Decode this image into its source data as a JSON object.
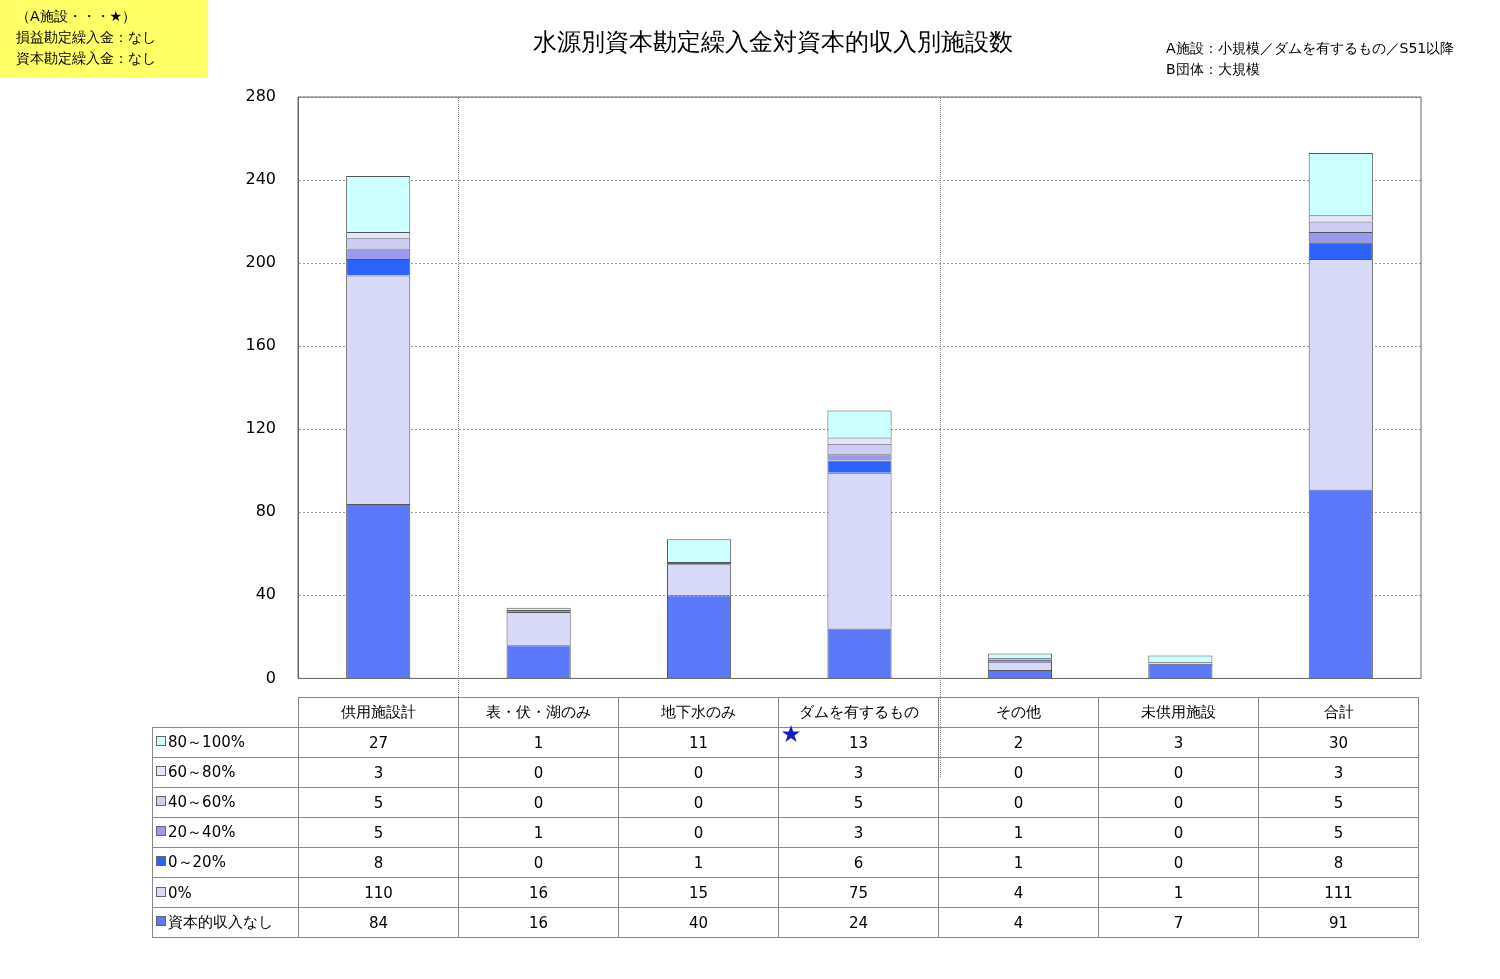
{
  "chart_data": {
    "type": "bar",
    "title": "水源別資本勘定繰入金対資本的収入別施設数",
    "annotations": [
      "（A施設・・・★）",
      "損益勘定繰入金：なし",
      "資本勘定繰入金：なし",
      "A施設：小規模／ダムを有するもの／S51以降",
      "B団体：大規模"
    ],
    "categories": [
      "供用施設計",
      "表・伏・湖のみ",
      "地下水のみ",
      "ダムを有するもの",
      "その他",
      "未供用施設",
      "合計"
    ],
    "stacked": true,
    "data_labels": true,
    "legend": "bottom",
    "grid": "y",
    "ylim": [
      0,
      280
    ],
    "yticks": [
      0,
      40,
      80,
      120,
      160,
      200,
      240,
      280
    ],
    "series": [
      {
        "name": "資本的収入なし",
        "color": "#5a78f8",
        "values": [
          84,
          16,
          40,
          24,
          4,
          7,
          91
        ]
      },
      {
        "name": "0%",
        "color": "#d8d8f8",
        "values": [
          110,
          16,
          15,
          75,
          4,
          1,
          111
        ]
      },
      {
        "name": "0～20%",
        "color": "#2d62fa",
        "values": [
          8,
          0,
          1,
          6,
          1,
          0,
          8
        ]
      },
      {
        "name": "20～40%",
        "color": "#9999f0",
        "values": [
          5,
          1,
          0,
          3,
          1,
          0,
          5
        ]
      },
      {
        "name": "40～60%",
        "color": "#ccccf5",
        "values": [
          5,
          0,
          0,
          5,
          0,
          0,
          5
        ]
      },
      {
        "name": "60～80%",
        "color": "#e6e6fa",
        "values": [
          3,
          0,
          0,
          3,
          0,
          0,
          3
        ]
      },
      {
        "name": "80～100%",
        "color": "#ccffff",
        "values": [
          27,
          1,
          11,
          13,
          2,
          3,
          30
        ]
      }
    ]
  }
}
